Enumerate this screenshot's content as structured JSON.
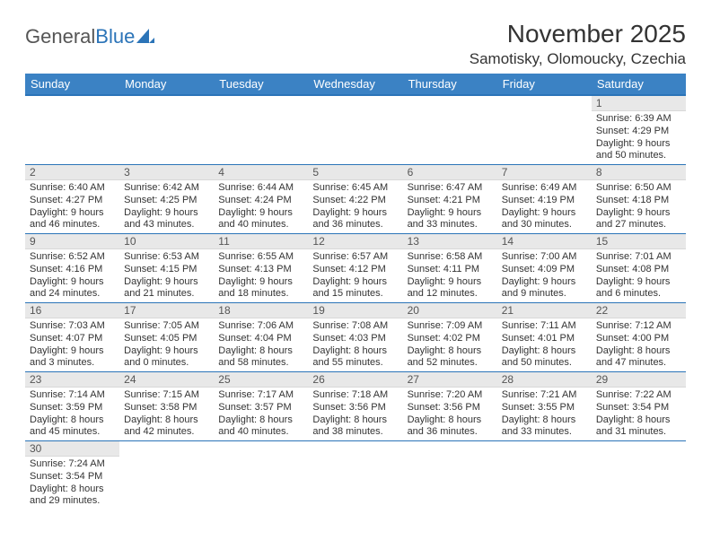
{
  "logo": {
    "part1": "General",
    "part2": "Blue"
  },
  "title": "November 2025",
  "location": "Samotisky, Olomoucky, Czechia",
  "weekdays": [
    "Sunday",
    "Monday",
    "Tuesday",
    "Wednesday",
    "Thursday",
    "Friday",
    "Saturday"
  ],
  "colors": {
    "header_bg": "#3b82c4",
    "header_text": "#ffffff",
    "daynum_bg": "#e8e8e8",
    "row_border": "#2b74b8",
    "text": "#333333",
    "logo_gray": "#555555",
    "logo_blue": "#2b74b8"
  },
  "weeks": [
    [
      null,
      null,
      null,
      null,
      null,
      null,
      {
        "n": "1",
        "sr": "Sunrise: 6:39 AM",
        "ss": "Sunset: 4:29 PM",
        "d1": "Daylight: 9 hours",
        "d2": "and 50 minutes."
      }
    ],
    [
      {
        "n": "2",
        "sr": "Sunrise: 6:40 AM",
        "ss": "Sunset: 4:27 PM",
        "d1": "Daylight: 9 hours",
        "d2": "and 46 minutes."
      },
      {
        "n": "3",
        "sr": "Sunrise: 6:42 AM",
        "ss": "Sunset: 4:25 PM",
        "d1": "Daylight: 9 hours",
        "d2": "and 43 minutes."
      },
      {
        "n": "4",
        "sr": "Sunrise: 6:44 AM",
        "ss": "Sunset: 4:24 PM",
        "d1": "Daylight: 9 hours",
        "d2": "and 40 minutes."
      },
      {
        "n": "5",
        "sr": "Sunrise: 6:45 AM",
        "ss": "Sunset: 4:22 PM",
        "d1": "Daylight: 9 hours",
        "d2": "and 36 minutes."
      },
      {
        "n": "6",
        "sr": "Sunrise: 6:47 AM",
        "ss": "Sunset: 4:21 PM",
        "d1": "Daylight: 9 hours",
        "d2": "and 33 minutes."
      },
      {
        "n": "7",
        "sr": "Sunrise: 6:49 AM",
        "ss": "Sunset: 4:19 PM",
        "d1": "Daylight: 9 hours",
        "d2": "and 30 minutes."
      },
      {
        "n": "8",
        "sr": "Sunrise: 6:50 AM",
        "ss": "Sunset: 4:18 PM",
        "d1": "Daylight: 9 hours",
        "d2": "and 27 minutes."
      }
    ],
    [
      {
        "n": "9",
        "sr": "Sunrise: 6:52 AM",
        "ss": "Sunset: 4:16 PM",
        "d1": "Daylight: 9 hours",
        "d2": "and 24 minutes."
      },
      {
        "n": "10",
        "sr": "Sunrise: 6:53 AM",
        "ss": "Sunset: 4:15 PM",
        "d1": "Daylight: 9 hours",
        "d2": "and 21 minutes."
      },
      {
        "n": "11",
        "sr": "Sunrise: 6:55 AM",
        "ss": "Sunset: 4:13 PM",
        "d1": "Daylight: 9 hours",
        "d2": "and 18 minutes."
      },
      {
        "n": "12",
        "sr": "Sunrise: 6:57 AM",
        "ss": "Sunset: 4:12 PM",
        "d1": "Daylight: 9 hours",
        "d2": "and 15 minutes."
      },
      {
        "n": "13",
        "sr": "Sunrise: 6:58 AM",
        "ss": "Sunset: 4:11 PM",
        "d1": "Daylight: 9 hours",
        "d2": "and 12 minutes."
      },
      {
        "n": "14",
        "sr": "Sunrise: 7:00 AM",
        "ss": "Sunset: 4:09 PM",
        "d1": "Daylight: 9 hours",
        "d2": "and 9 minutes."
      },
      {
        "n": "15",
        "sr": "Sunrise: 7:01 AM",
        "ss": "Sunset: 4:08 PM",
        "d1": "Daylight: 9 hours",
        "d2": "and 6 minutes."
      }
    ],
    [
      {
        "n": "16",
        "sr": "Sunrise: 7:03 AM",
        "ss": "Sunset: 4:07 PM",
        "d1": "Daylight: 9 hours",
        "d2": "and 3 minutes."
      },
      {
        "n": "17",
        "sr": "Sunrise: 7:05 AM",
        "ss": "Sunset: 4:05 PM",
        "d1": "Daylight: 9 hours",
        "d2": "and 0 minutes."
      },
      {
        "n": "18",
        "sr": "Sunrise: 7:06 AM",
        "ss": "Sunset: 4:04 PM",
        "d1": "Daylight: 8 hours",
        "d2": "and 58 minutes."
      },
      {
        "n": "19",
        "sr": "Sunrise: 7:08 AM",
        "ss": "Sunset: 4:03 PM",
        "d1": "Daylight: 8 hours",
        "d2": "and 55 minutes."
      },
      {
        "n": "20",
        "sr": "Sunrise: 7:09 AM",
        "ss": "Sunset: 4:02 PM",
        "d1": "Daylight: 8 hours",
        "d2": "and 52 minutes."
      },
      {
        "n": "21",
        "sr": "Sunrise: 7:11 AM",
        "ss": "Sunset: 4:01 PM",
        "d1": "Daylight: 8 hours",
        "d2": "and 50 minutes."
      },
      {
        "n": "22",
        "sr": "Sunrise: 7:12 AM",
        "ss": "Sunset: 4:00 PM",
        "d1": "Daylight: 8 hours",
        "d2": "and 47 minutes."
      }
    ],
    [
      {
        "n": "23",
        "sr": "Sunrise: 7:14 AM",
        "ss": "Sunset: 3:59 PM",
        "d1": "Daylight: 8 hours",
        "d2": "and 45 minutes."
      },
      {
        "n": "24",
        "sr": "Sunrise: 7:15 AM",
        "ss": "Sunset: 3:58 PM",
        "d1": "Daylight: 8 hours",
        "d2": "and 42 minutes."
      },
      {
        "n": "25",
        "sr": "Sunrise: 7:17 AM",
        "ss": "Sunset: 3:57 PM",
        "d1": "Daylight: 8 hours",
        "d2": "and 40 minutes."
      },
      {
        "n": "26",
        "sr": "Sunrise: 7:18 AM",
        "ss": "Sunset: 3:56 PM",
        "d1": "Daylight: 8 hours",
        "d2": "and 38 minutes."
      },
      {
        "n": "27",
        "sr": "Sunrise: 7:20 AM",
        "ss": "Sunset: 3:56 PM",
        "d1": "Daylight: 8 hours",
        "d2": "and 36 minutes."
      },
      {
        "n": "28",
        "sr": "Sunrise: 7:21 AM",
        "ss": "Sunset: 3:55 PM",
        "d1": "Daylight: 8 hours",
        "d2": "and 33 minutes."
      },
      {
        "n": "29",
        "sr": "Sunrise: 7:22 AM",
        "ss": "Sunset: 3:54 PM",
        "d1": "Daylight: 8 hours",
        "d2": "and 31 minutes."
      }
    ],
    [
      {
        "n": "30",
        "sr": "Sunrise: 7:24 AM",
        "ss": "Sunset: 3:54 PM",
        "d1": "Daylight: 8 hours",
        "d2": "and 29 minutes."
      },
      null,
      null,
      null,
      null,
      null,
      null
    ]
  ]
}
